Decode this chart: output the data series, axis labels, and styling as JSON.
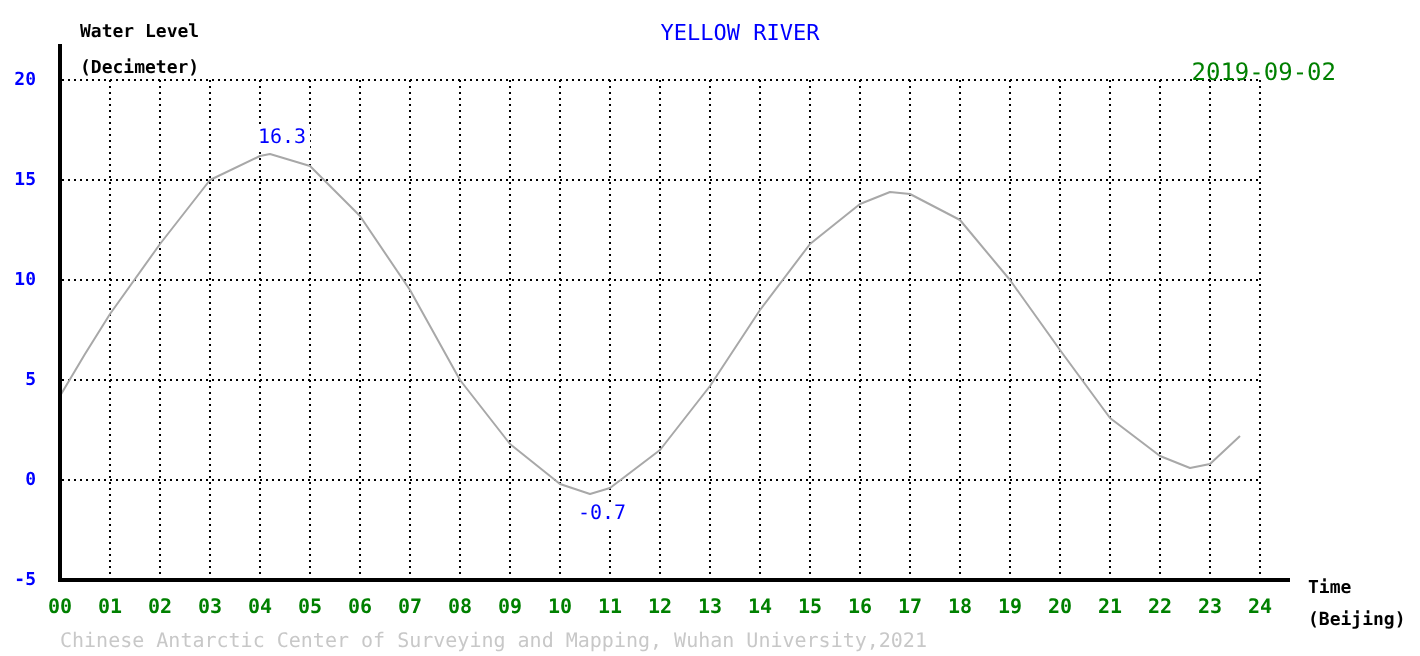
{
  "chart_data": {
    "type": "line",
    "title": "YELLOW RIVER",
    "subtitle": "2019-09-02",
    "xlabel": "Time\n(Beijing)",
    "ylabel": "Water Level\n(Decimeter)",
    "x": [
      0,
      0.5,
      1,
      2,
      3,
      4,
      4.2,
      5,
      6,
      7,
      8,
      9,
      10,
      10.6,
      11,
      12,
      13,
      14,
      15,
      16,
      16.6,
      17,
      18,
      19,
      20,
      21,
      22,
      22.6,
      23,
      23.6
    ],
    "series": [
      {
        "color": "#a8a8a8",
        "values": [
          4.2,
          6.3,
          8.3,
          11.8,
          15.0,
          16.2,
          16.3,
          15.7,
          13.2,
          9.5,
          5.0,
          1.8,
          -0.2,
          -0.7,
          -0.4,
          1.5,
          4.7,
          8.5,
          11.8,
          13.8,
          14.4,
          14.3,
          13.0,
          10.0,
          6.5,
          3.1,
          1.2,
          0.6,
          0.8,
          2.2
        ]
      }
    ],
    "xlim": [
      0,
      24
    ],
    "xticks": [
      {
        "value": 0,
        "label": "00"
      },
      {
        "value": 1,
        "label": "01"
      },
      {
        "value": 2,
        "label": "02"
      },
      {
        "value": 3,
        "label": "03"
      },
      {
        "value": 4,
        "label": "04"
      },
      {
        "value": 5,
        "label": "05"
      },
      {
        "value": 6,
        "label": "06"
      },
      {
        "value": 7,
        "label": "07"
      },
      {
        "value": 8,
        "label": "08"
      },
      {
        "value": 9,
        "label": "09"
      },
      {
        "value": 10,
        "label": "10"
      },
      {
        "value": 11,
        "label": "11"
      },
      {
        "value": 12,
        "label": "12"
      },
      {
        "value": 13,
        "label": "13"
      },
      {
        "value": 14,
        "label": "14"
      },
      {
        "value": 15,
        "label": "15"
      },
      {
        "value": 16,
        "label": "16"
      },
      {
        "value": 17,
        "label": "17"
      },
      {
        "value": 18,
        "label": "18"
      },
      {
        "value": 19,
        "label": "19"
      },
      {
        "value": 20,
        "label": "20"
      },
      {
        "value": 21,
        "label": "21"
      },
      {
        "value": 22,
        "label": "22"
      },
      {
        "value": 23,
        "label": "23"
      },
      {
        "value": 24,
        "label": "24"
      }
    ],
    "ylim": [
      -5,
      20
    ],
    "yticks": [
      -5,
      0,
      5,
      10,
      15,
      20
    ],
    "grid": true,
    "line_style": "solid",
    "annotations": [
      {
        "text": "16.3",
        "x": 4.2,
        "y": 16.3
      },
      {
        "text": "-0.7",
        "x": 10.6,
        "y": -0.7
      },
      "Chinese Antarctic Center of Surveying and Mapping, Wuhan University,2021"
    ]
  }
}
